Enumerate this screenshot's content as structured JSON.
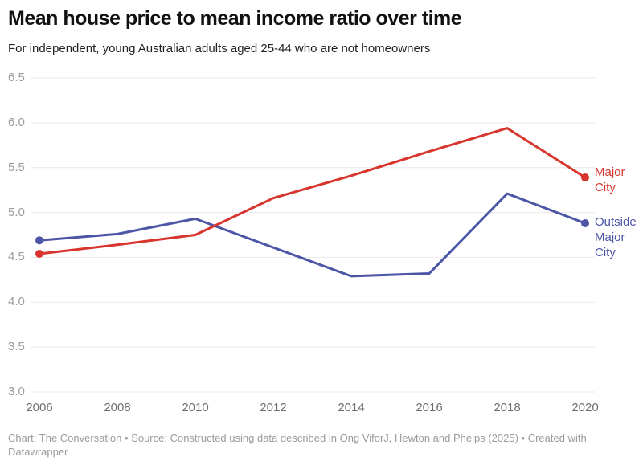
{
  "title": "Mean house price to mean income ratio over time",
  "subtitle": "For independent, young Australian adults aged 25-44 who are not homeowners",
  "footer": "Chart: The Conversation • Source: Constructed using data described in Ong ViforJ, Hewton and Phelps (2025) • Created with Datawrapper",
  "chart_data": {
    "type": "line",
    "x": [
      2006,
      2008,
      2010,
      2012,
      2014,
      2016,
      2018,
      2020
    ],
    "xticks": [
      2006,
      2008,
      2010,
      2012,
      2014,
      2016,
      2018,
      2020
    ],
    "yticks": [
      6.5,
      6.0,
      5.5,
      5.0,
      4.5,
      4.0,
      3.5,
      3.0
    ],
    "ylim": [
      3.0,
      6.5
    ],
    "grid": true,
    "grid_color": "#e9e9e9",
    "legend_position": "end-of-line",
    "series": [
      {
        "name": "Major City",
        "color": "#d8352e",
        "values": [
          4.54,
          4.64,
          4.75,
          5.16,
          5.41,
          5.68,
          5.94,
          5.39
        ]
      },
      {
        "name": "Outside Major City",
        "color": "#4c55a6",
        "values": [
          4.69,
          4.76,
          4.93,
          4.61,
          4.29,
          4.32,
          5.21,
          4.88
        ]
      }
    ]
  }
}
